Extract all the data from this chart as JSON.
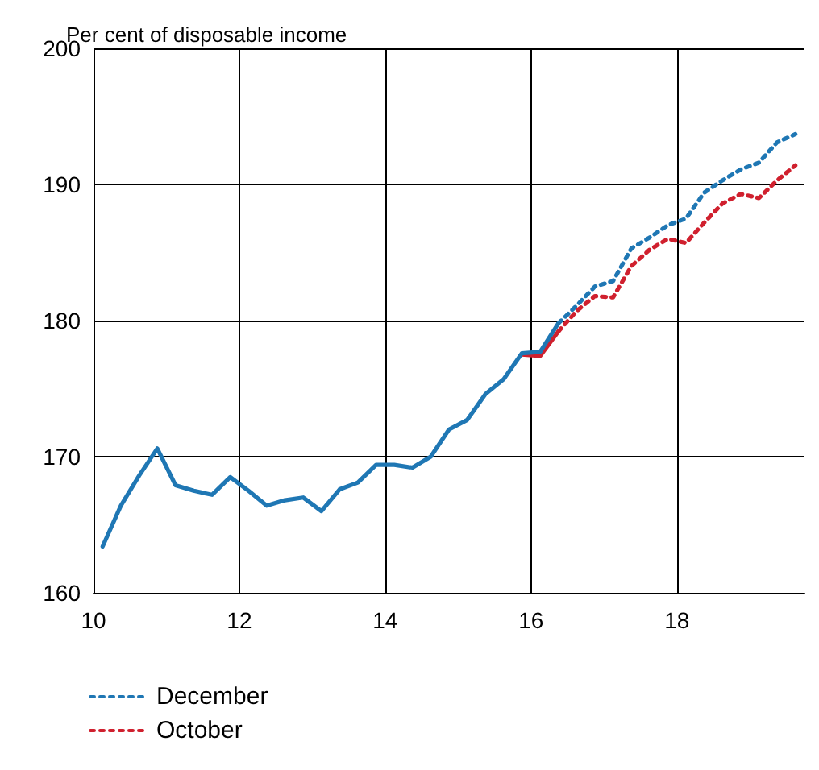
{
  "chart_data": {
    "type": "line",
    "ylabel": "Per cent of disposable income",
    "xlim": [
      10,
      19.75
    ],
    "xticks": [
      10,
      12,
      14,
      16,
      18
    ],
    "ylim": [
      160,
      200
    ],
    "yticks": [
      160,
      170,
      180,
      190,
      200
    ],
    "grid": true,
    "legend": "bottom",
    "marker": "none",
    "series": [
      {
        "color": "#d0202e",
        "line_style": "solid",
        "x": [
          15.875,
          16.125,
          16.375
        ],
        "values": [
          177.5,
          177.4,
          179.2
        ]
      },
      {
        "color": "#1f77b4",
        "line_style": "solid",
        "x": [
          10.125,
          10.375,
          10.625,
          10.875,
          11.125,
          11.375,
          11.625,
          11.875,
          12.125,
          12.375,
          12.625,
          12.875,
          13.125,
          13.375,
          13.625,
          13.875,
          14.125,
          14.375,
          14.625,
          14.875,
          15.125,
          15.375,
          15.625,
          15.875,
          16.125,
          16.375
        ],
        "values": [
          163.4,
          166.4,
          168.6,
          170.6,
          167.9,
          167.5,
          167.2,
          168.5,
          167.5,
          166.4,
          166.8,
          167.0,
          166.0,
          167.6,
          168.1,
          169.4,
          169.4,
          169.2,
          170.0,
          172.0,
          172.7,
          174.6,
          175.7,
          177.6,
          177.7,
          179.8
        ]
      },
      {
        "name": "December",
        "color": "#1f77b4",
        "line_style": "dotted",
        "x": [
          16.375,
          16.625,
          16.875,
          17.125,
          17.375,
          17.625,
          17.875,
          18.125,
          18.375,
          18.625,
          18.875,
          19.125,
          19.375,
          19.625
        ],
        "values": [
          179.8,
          181.1,
          182.5,
          182.9,
          185.3,
          186.1,
          187.0,
          187.5,
          189.4,
          190.3,
          191.1,
          191.6,
          193.1,
          193.7
        ]
      },
      {
        "name": "October",
        "color": "#d0202e",
        "line_style": "dotted",
        "x": [
          16.375,
          16.625,
          16.875,
          17.125,
          17.375,
          17.625,
          17.875,
          18.125,
          18.375,
          18.625,
          18.875,
          19.125,
          19.375,
          19.625
        ],
        "values": [
          179.2,
          180.7,
          181.8,
          181.7,
          184.0,
          185.2,
          186.0,
          185.7,
          187.2,
          188.6,
          189.3,
          189.0,
          190.3,
          191.4
        ]
      }
    ]
  }
}
